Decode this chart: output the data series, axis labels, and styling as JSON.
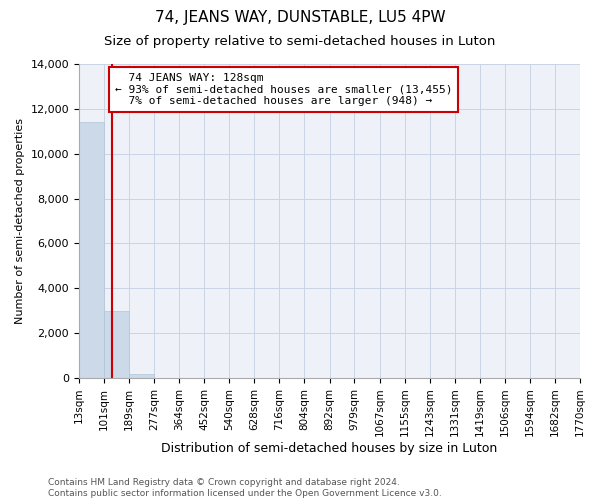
{
  "title": "74, JEANS WAY, DUNSTABLE, LU5 4PW",
  "subtitle": "Size of property relative to semi-detached houses in Luton",
  "xlabel": "Distribution of semi-detached houses by size in Luton",
  "ylabel": "Number of semi-detached properties",
  "property_size": 128,
  "property_label": "74 JEANS WAY: 128sqm",
  "pct_smaller": 93,
  "count_smaller": 13455,
  "pct_larger": 7,
  "count_larger": 948,
  "bin_edges": [
    13,
    101,
    189,
    277,
    364,
    452,
    540,
    628,
    716,
    804,
    892,
    979,
    1067,
    1155,
    1243,
    1331,
    1419,
    1506,
    1594,
    1682,
    1770
  ],
  "bin_labels": [
    "13sqm",
    "101sqm",
    "189sqm",
    "277sqm",
    "364sqm",
    "452sqm",
    "540sqm",
    "628sqm",
    "716sqm",
    "804sqm",
    "892sqm",
    "979sqm",
    "1067sqm",
    "1155sqm",
    "1243sqm",
    "1331sqm",
    "1419sqm",
    "1506sqm",
    "1594sqm",
    "1682sqm",
    "1770sqm"
  ],
  "bar_values": [
    11400,
    3000,
    160,
    8,
    1,
    0,
    0,
    0,
    0,
    0,
    0,
    0,
    0,
    0,
    0,
    0,
    0,
    0,
    0,
    0
  ],
  "bar_color": "#ccd9e8",
  "bar_edge_color": "#b0c4d8",
  "vline_color": "#cc0000",
  "annotation_box_color": "#cc0000",
  "ylim": [
    0,
    14000
  ],
  "yticks": [
    0,
    2000,
    4000,
    6000,
    8000,
    10000,
    12000,
    14000
  ],
  "grid_color": "#c8d4e4",
  "bg_color": "#eef2f8",
  "footer_line1": "Contains HM Land Registry data © Crown copyright and database right 2024.",
  "footer_line2": "Contains public sector information licensed under the Open Government Licence v3.0.",
  "title_fontsize": 11,
  "subtitle_fontsize": 9.5,
  "tick_fontsize": 7.5,
  "ylabel_fontsize": 8,
  "xlabel_fontsize": 9,
  "annotation_fontsize": 8,
  "footer_fontsize": 6.5
}
